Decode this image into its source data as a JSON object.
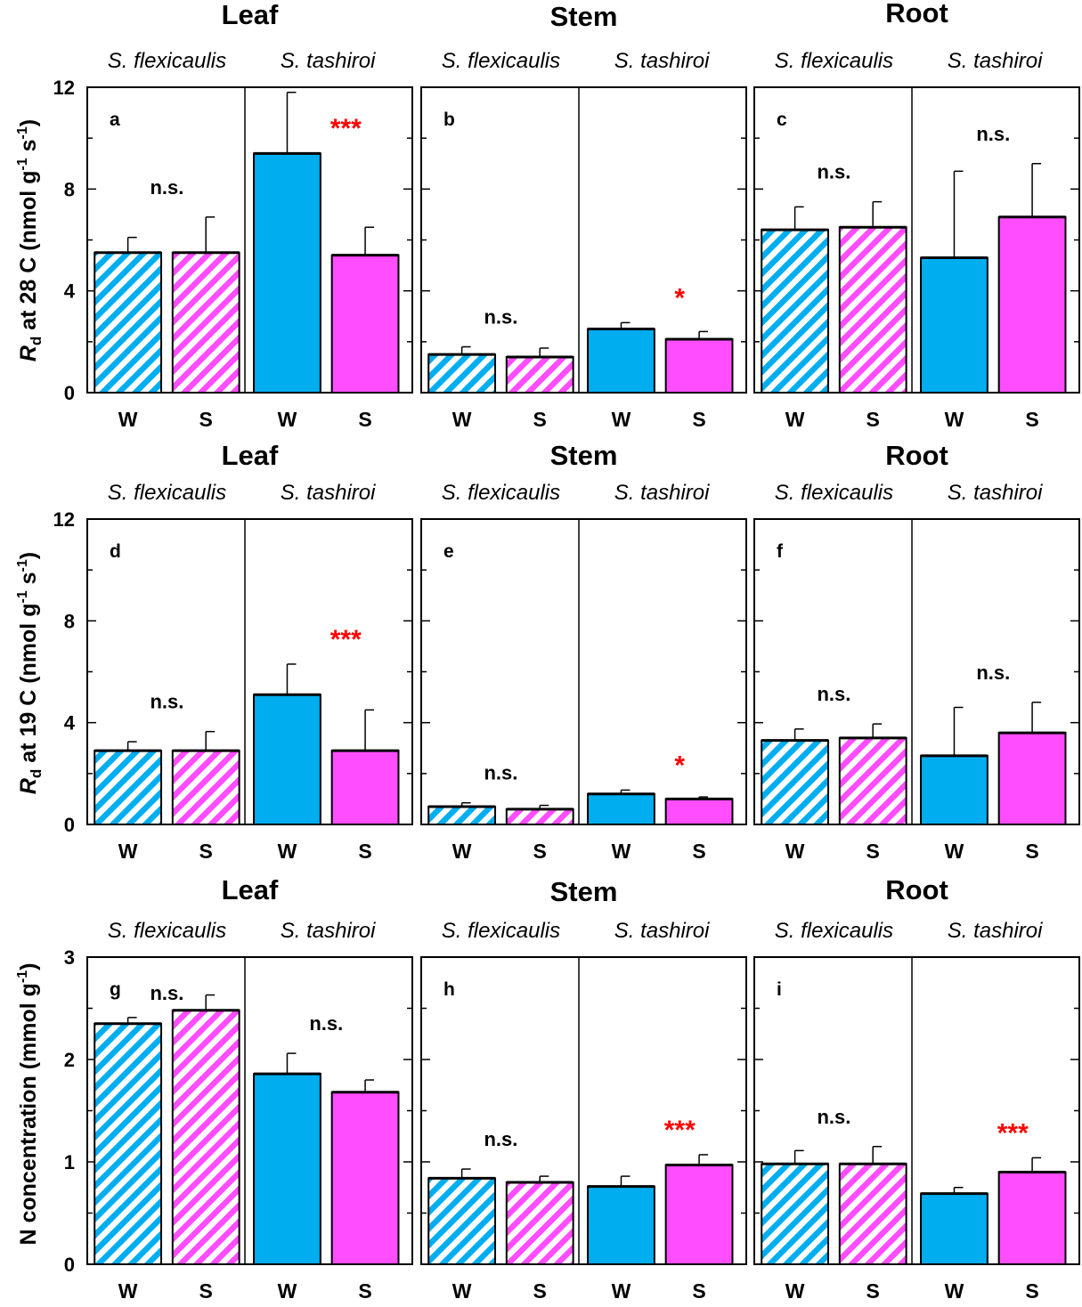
{
  "colors": {
    "W": "#00aeef",
    "S": "#ff4dff",
    "significance": "#ff0000"
  },
  "y_axis_labels": [
    {
      "main": "R",
      "sub": "d",
      "rest": " at 28 C  (nmol g",
      "sup1": "-1",
      "mid": " s",
      "sup2": "-1",
      "end": ")"
    },
    {
      "main": "R",
      "sub": "d",
      "rest": " at 19 C  (nmol g",
      "sup1": "-1",
      "mid": " s",
      "sup2": "-1",
      "end": ")"
    },
    {
      "text": "N concentration (mmol g",
      "sup": "-1",
      "end": ")"
    }
  ],
  "chart_data": [
    {
      "type": "bar",
      "panel": "a",
      "title": "Leaf",
      "species": [
        "S. flexicaulis",
        "S. tashiroi"
      ],
      "categories": [
        "W",
        "S",
        "W",
        "S"
      ],
      "fill": [
        "hatched",
        "hatched",
        "solid",
        "solid"
      ],
      "values": [
        5.5,
        5.5,
        9.4,
        5.4
      ],
      "errors": [
        0.6,
        1.4,
        2.4,
        1.1
      ],
      "significance": [
        {
          "label": "n.s.",
          "highlight": false
        },
        {
          "label": "***",
          "highlight": true
        }
      ],
      "ylim": [
        0,
        12
      ],
      "yticks": [
        "0",
        "4",
        "8",
        "12"
      ],
      "show_tick_labels": true
    },
    {
      "type": "bar",
      "panel": "b",
      "title": "Stem",
      "species": [
        "S. flexicaulis",
        "S. tashiroi"
      ],
      "categories": [
        "W",
        "S",
        "W",
        "S"
      ],
      "fill": [
        "hatched",
        "hatched",
        "solid",
        "solid"
      ],
      "values": [
        1.5,
        1.4,
        2.5,
        2.1
      ],
      "errors": [
        0.3,
        0.35,
        0.25,
        0.3
      ],
      "significance": [
        {
          "label": "n.s.",
          "highlight": false
        },
        {
          "label": "*",
          "highlight": true
        }
      ],
      "ylim": [
        0,
        12
      ],
      "yticks": [
        "0",
        "4",
        "8",
        "12"
      ],
      "show_tick_labels": false
    },
    {
      "type": "bar",
      "panel": "c",
      "title": "Root",
      "species": [
        "S. flexicaulis",
        "S. tashiroi"
      ],
      "categories": [
        "W",
        "S",
        "W",
        "S"
      ],
      "fill": [
        "hatched",
        "hatched",
        "solid",
        "solid"
      ],
      "values": [
        6.4,
        6.5,
        5.3,
        6.9
      ],
      "errors": [
        0.9,
        1.0,
        3.4,
        2.1
      ],
      "significance": [
        {
          "label": "n.s.",
          "highlight": false
        },
        {
          "label": "n.s.",
          "highlight": false
        }
      ],
      "ylim": [
        0,
        12
      ],
      "yticks": [
        "0",
        "4",
        "8",
        "12"
      ],
      "show_tick_labels": false
    },
    {
      "type": "bar",
      "panel": "d",
      "title": "Leaf",
      "species": [
        "S. flexicaulis",
        "S. tashiroi"
      ],
      "categories": [
        "W",
        "S",
        "W",
        "S"
      ],
      "fill": [
        "hatched",
        "hatched",
        "solid",
        "solid"
      ],
      "values": [
        2.9,
        2.9,
        5.1,
        2.9
      ],
      "errors": [
        0.35,
        0.75,
        1.2,
        1.6
      ],
      "significance": [
        {
          "label": "n.s.",
          "highlight": false
        },
        {
          "label": "***",
          "highlight": true
        }
      ],
      "ylim": [
        0,
        12
      ],
      "yticks": [
        "0",
        "4",
        "8",
        "12"
      ],
      "show_tick_labels": true
    },
    {
      "type": "bar",
      "panel": "e",
      "title": "Stem",
      "species": [
        "S. flexicaulis",
        "S. tashiroi"
      ],
      "categories": [
        "W",
        "S",
        "W",
        "S"
      ],
      "fill": [
        "hatched",
        "hatched",
        "solid",
        "solid"
      ],
      "values": [
        0.7,
        0.6,
        1.2,
        1.0
      ],
      "errors": [
        0.15,
        0.15,
        0.15,
        0.08
      ],
      "significance": [
        {
          "label": "n.s.",
          "highlight": false
        },
        {
          "label": "*",
          "highlight": true
        }
      ],
      "ylim": [
        0,
        12
      ],
      "yticks": [
        "0",
        "4",
        "8",
        "12"
      ],
      "show_tick_labels": false
    },
    {
      "type": "bar",
      "panel": "f",
      "title": "Root",
      "species": [
        "S. flexicaulis",
        "S. tashiroi"
      ],
      "categories": [
        "W",
        "S",
        "W",
        "S"
      ],
      "fill": [
        "hatched",
        "hatched",
        "solid",
        "solid"
      ],
      "values": [
        3.3,
        3.4,
        2.7,
        3.6
      ],
      "errors": [
        0.45,
        0.55,
        1.9,
        1.2
      ],
      "significance": [
        {
          "label": "n.s.",
          "highlight": false
        },
        {
          "label": "n.s.",
          "highlight": false
        }
      ],
      "ylim": [
        0,
        12
      ],
      "yticks": [
        "0",
        "4",
        "8",
        "12"
      ],
      "show_tick_labels": false
    },
    {
      "type": "bar",
      "panel": "g",
      "title": "Leaf",
      "species": [
        "S. flexicaulis",
        "S. tashiroi"
      ],
      "categories": [
        "W",
        "S",
        "W",
        "S"
      ],
      "fill": [
        "hatched",
        "hatched",
        "solid",
        "solid"
      ],
      "values": [
        2.35,
        2.48,
        1.86,
        1.68
      ],
      "errors": [
        0.06,
        0.15,
        0.2,
        0.12
      ],
      "significance": [
        {
          "label": "n.s.",
          "highlight": false
        },
        {
          "label": "n.s.",
          "highlight": false
        }
      ],
      "ylim": [
        0,
        3
      ],
      "yticks": [
        "0",
        "1",
        "2",
        "3"
      ],
      "show_tick_labels": true
    },
    {
      "type": "bar",
      "panel": "h",
      "title": "Stem",
      "species": [
        "S. flexicaulis",
        "S. tashiroi"
      ],
      "categories": [
        "W",
        "S",
        "W",
        "S"
      ],
      "fill": [
        "hatched",
        "hatched",
        "solid",
        "solid"
      ],
      "values": [
        0.84,
        0.8,
        0.76,
        0.97
      ],
      "errors": [
        0.09,
        0.06,
        0.1,
        0.1
      ],
      "significance": [
        {
          "label": "n.s.",
          "highlight": false
        },
        {
          "label": "***",
          "highlight": true
        }
      ],
      "ylim": [
        0,
        3
      ],
      "yticks": [
        "0",
        "1",
        "2",
        "3"
      ],
      "show_tick_labels": false
    },
    {
      "type": "bar",
      "panel": "i",
      "title": "Root",
      "species": [
        "S. flexicaulis",
        "S. tashiroi"
      ],
      "categories": [
        "W",
        "S",
        "W",
        "S"
      ],
      "fill": [
        "hatched",
        "hatched",
        "solid",
        "solid"
      ],
      "values": [
        0.98,
        0.98,
        0.69,
        0.9
      ],
      "errors": [
        0.13,
        0.17,
        0.06,
        0.14
      ],
      "significance": [
        {
          "label": "n.s.",
          "highlight": false
        },
        {
          "label": "***",
          "highlight": true
        }
      ],
      "ylim": [
        0,
        3
      ],
      "yticks": [
        "0",
        "1",
        "2",
        "3"
      ],
      "show_tick_labels": false
    }
  ]
}
